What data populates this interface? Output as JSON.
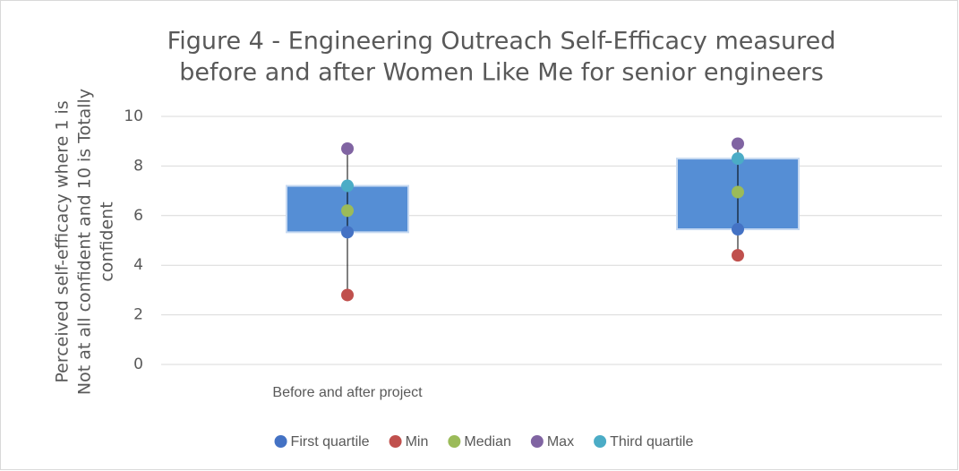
{
  "chart_data": {
    "type": "box",
    "title": [
      "Figure 4 - Engineering Outreach Self-Efficacy measured",
      "before and after Women Like Me for senior engineers"
    ],
    "ylabel": [
      "Perceived self-efficacy where 1 is",
      "Not at all confident and 10 is Totally",
      "confident"
    ],
    "categories": [
      "Before and after project",
      null
    ],
    "series": [
      {
        "name": "First quartile",
        "color": "#4472c4",
        "values": [
          5.33,
          5.45
        ]
      },
      {
        "name": "Min",
        "color": "#c0504d",
        "values": [
          2.8,
          4.4
        ]
      },
      {
        "name": "Median",
        "color": "#9bbb59",
        "values": [
          6.2,
          6.95
        ]
      },
      {
        "name": "Max",
        "color": "#8064a2",
        "values": [
          8.7,
          8.9
        ]
      },
      {
        "name": "Third quartile",
        "color": "#4bacc6",
        "values": [
          7.2,
          8.3
        ]
      }
    ],
    "box_color": "#558ed5",
    "ylim": [
      0,
      10
    ],
    "yticks": [
      0,
      2,
      4,
      6,
      8,
      10
    ],
    "grid": true,
    "legend": "bottom"
  }
}
